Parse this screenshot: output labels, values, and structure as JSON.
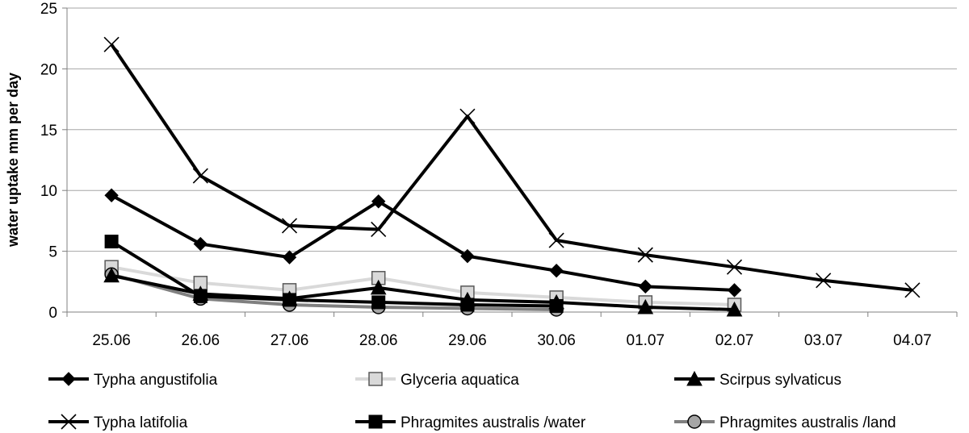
{
  "chart_data": {
    "type": "line",
    "title": "",
    "xlabel": "",
    "ylabel": "water uptake mm per day",
    "ylim": [
      0,
      25
    ],
    "yticks": [
      0,
      5,
      10,
      15,
      20,
      25
    ],
    "categories": [
      "25.06",
      "26.06",
      "27.06",
      "28.06",
      "29.06",
      "30.06",
      "01.07",
      "02.07",
      "03.07",
      "04.07"
    ],
    "grid": "horizontal",
    "legend_position": "bottom",
    "series": [
      {
        "name": "Typha angustifolia",
        "marker": "diamond",
        "color": "#000000",
        "values": [
          9.6,
          5.6,
          4.5,
          9.1,
          4.6,
          3.4,
          2.1,
          1.8,
          null,
          null
        ]
      },
      {
        "name": "Glyceria aquatica",
        "marker": "square-open",
        "color": "#d9d9d9",
        "values": [
          3.7,
          2.4,
          1.8,
          2.8,
          1.6,
          1.2,
          0.8,
          0.6,
          null,
          null
        ]
      },
      {
        "name": "Scirpus sylvaticus",
        "marker": "triangle",
        "color": "#000000",
        "values": [
          3.0,
          1.5,
          1.1,
          2.0,
          1.0,
          0.8,
          0.4,
          0.2,
          null,
          null
        ]
      },
      {
        "name": "Typha latifolia",
        "marker": "x",
        "color": "#000000",
        "values": [
          22.0,
          11.2,
          7.1,
          6.8,
          16.1,
          5.9,
          4.7,
          3.7,
          2.6,
          1.8
        ]
      },
      {
        "name": "Phragmites australis /water",
        "marker": "square",
        "color": "#000000",
        "values": [
          5.8,
          1.3,
          1.0,
          0.8,
          0.6,
          0.5,
          null,
          null,
          null,
          null
        ]
      },
      {
        "name": "Phragmites australis /land",
        "marker": "circle",
        "color": "#808080",
        "values": [
          3.1,
          1.1,
          0.6,
          0.4,
          0.3,
          0.2,
          null,
          null,
          null,
          null
        ]
      }
    ]
  }
}
